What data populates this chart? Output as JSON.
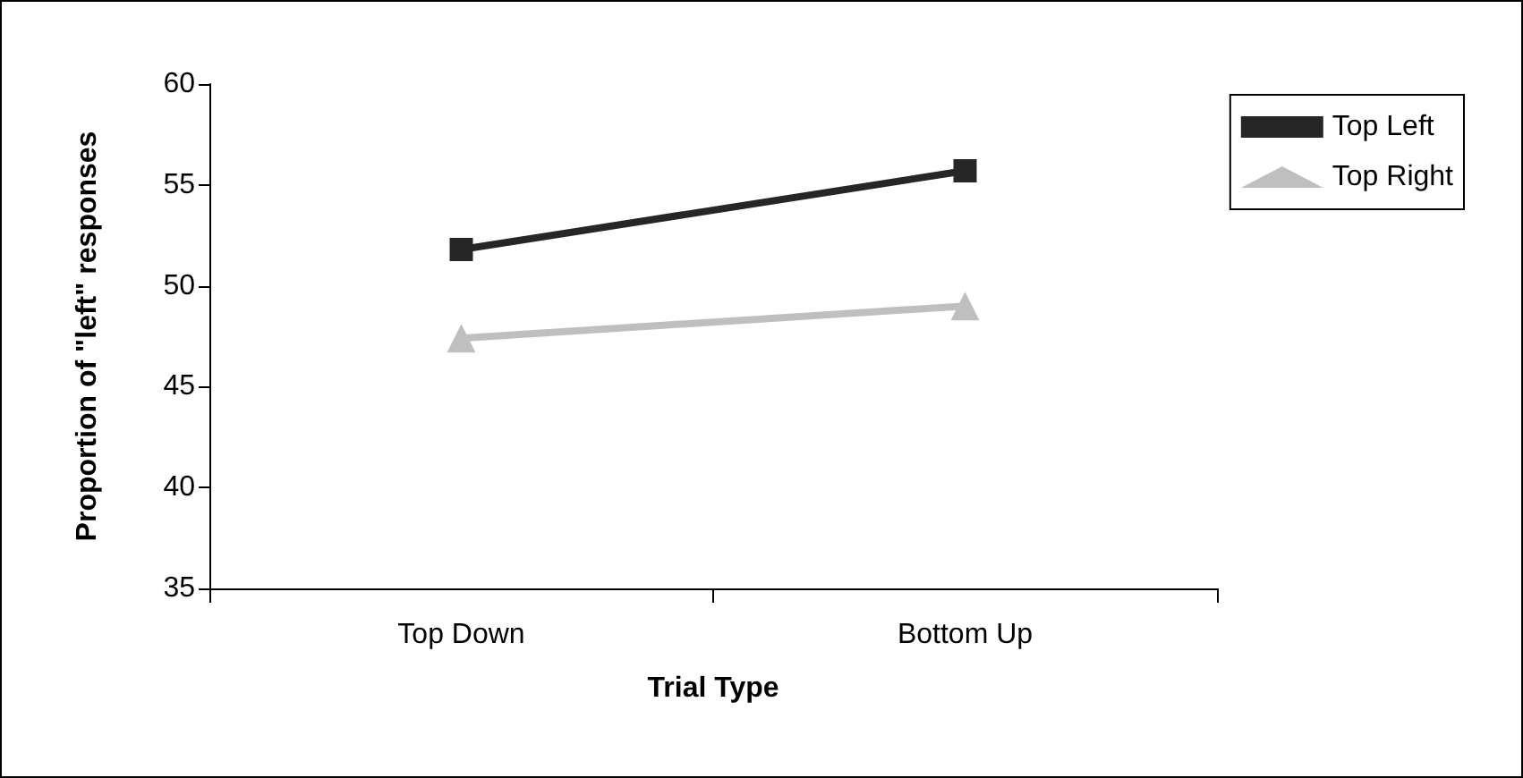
{
  "chart_data": {
    "type": "line",
    "xlabel": "Trial Type",
    "ylabel": "Proportion of \"left\" responses",
    "categories": [
      "Top Down",
      "Bottom Up"
    ],
    "series": [
      {
        "name": "Top Left",
        "color": "#262626",
        "marker": "square",
        "values": [
          51.8,
          55.7
        ]
      },
      {
        "name": "Top Right",
        "color": "#bfbfbf",
        "marker": "triangle",
        "values": [
          47.4,
          49.0
        ]
      }
    ],
    "ylim": [
      35,
      60
    ],
    "yticks": [
      35,
      40,
      45,
      50,
      55,
      60
    ],
    "grid": false,
    "legend": "top right"
  }
}
